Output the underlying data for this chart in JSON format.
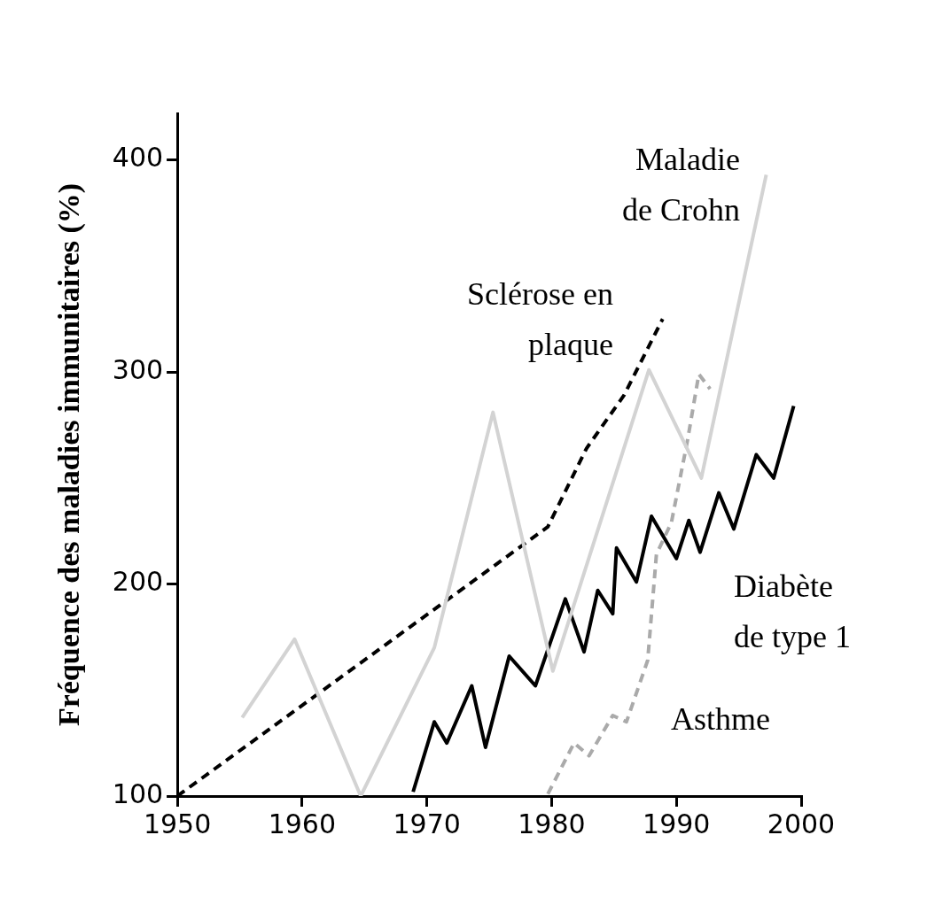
{
  "chart_data": {
    "type": "line",
    "ylabel": "Fréquence des maladies immunitaires (%)",
    "xlim": [
      1950,
      2000
    ],
    "xticks": [
      1950,
      1960,
      1970,
      1980,
      1990,
      2000
    ],
    "ylim": [
      100,
      422
    ],
    "yticks": [
      100,
      200,
      300,
      400
    ],
    "grid": false,
    "legend": false,
    "marker": "none",
    "series": [
      {
        "name": "Maladie\nde Crohn",
        "color": "#d3d3d3",
        "line_style": "solid",
        "x": [
          1955.2,
          1959.4,
          1964.7,
          1970.6,
          1975.3,
          1980.1,
          1987.8,
          1992.0,
          1997.2
        ],
        "values": [
          137,
          174,
          100,
          170,
          281,
          159,
          301,
          250,
          393
        ]
      },
      {
        "name": "Sclérose en\nplaque",
        "color": "#000000",
        "line_style": "dashed",
        "x": [
          1950,
          1979.7,
          1982.8,
          1985.8,
          1988.9
        ],
        "values": [
          100,
          227,
          264,
          289,
          325
        ]
      },
      {
        "name": "Diabète\nde type 1",
        "color": "#000000",
        "line_style": "solid",
        "x": [
          1968.9,
          1970.6,
          1971.6,
          1973.6,
          1974.7,
          1976.6,
          1978.7,
          1981.1,
          1982.6,
          1983.7,
          1984.9,
          1985.2,
          1986.8,
          1988.0,
          1990.0,
          1991.0,
          1991.9,
          1993.4,
          1994.6,
          1996.4,
          1997.8,
          1999.4
        ],
        "values": [
          102,
          135,
          125,
          152,
          123,
          166,
          152,
          193,
          168,
          197,
          186,
          217,
          201,
          232,
          212,
          230,
          215,
          243,
          226,
          261,
          250,
          284
        ]
      },
      {
        "name": "Asthme",
        "color": "#aaaaaa",
        "line_style": "dashed",
        "x": [
          1979.7,
          1981.8,
          1983.0,
          1984.9,
          1986.0,
          1987.7,
          1988.4,
          1989.6,
          1990.9,
          1991.8,
          1992.7
        ],
        "values": [
          101,
          125,
          119,
          138,
          135,
          164,
          214,
          229,
          268,
          299,
          292
        ]
      }
    ]
  }
}
